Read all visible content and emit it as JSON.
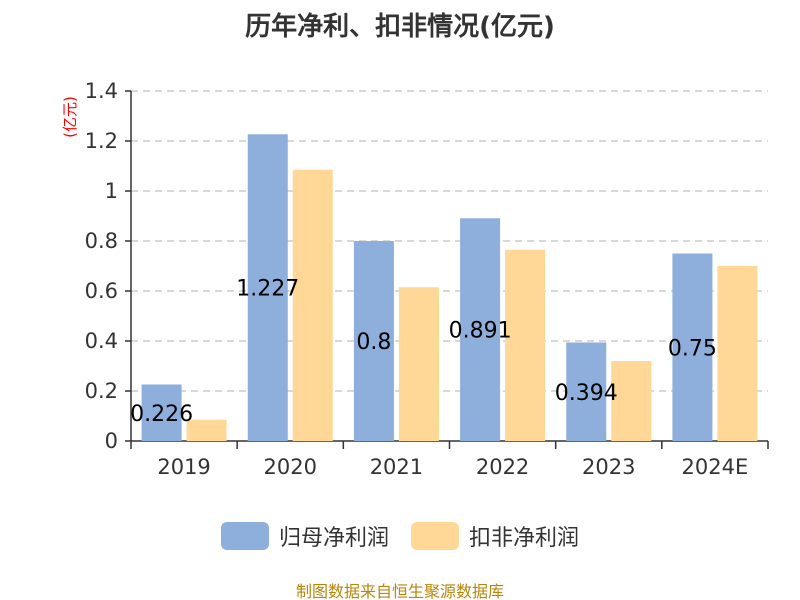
{
  "chart_data": {
    "type": "bar",
    "title": "历年净利、扣非情况(亿元)",
    "ylabel": "(亿元)",
    "xlabel": "",
    "categories": [
      "2019",
      "2020",
      "2021",
      "2022",
      "2023",
      "2024E"
    ],
    "ylim": [
      0,
      1.4
    ],
    "yticks": [
      0,
      0.2,
      0.4,
      0.6,
      0.8,
      1,
      1.2,
      1.4
    ],
    "ytick_labels": [
      "0",
      "0.2",
      "0.4",
      "0.6",
      "0.8",
      "1",
      "1.2",
      "1.4"
    ],
    "grid": true,
    "legend_position": "bottom",
    "series": [
      {
        "name": "归母净利润",
        "color": "#8eaedb",
        "values": [
          0.226,
          1.227,
          0.8,
          0.891,
          0.394,
          0.75
        ],
        "data_labels": [
          "0.226",
          "1.227",
          "0.8",
          "0.891",
          "0.394",
          "0.75"
        ]
      },
      {
        "name": "扣非净利润",
        "color": "#ffd898",
        "values": [
          0.085,
          1.085,
          0.615,
          0.765,
          0.32,
          0.7
        ]
      }
    ]
  },
  "source_note": "制图数据来自恒生聚源数据库",
  "colors": {
    "axis": "#333333",
    "grid": "#cccccc",
    "ylabel": "#ff0000",
    "source": "#b8860b"
  }
}
